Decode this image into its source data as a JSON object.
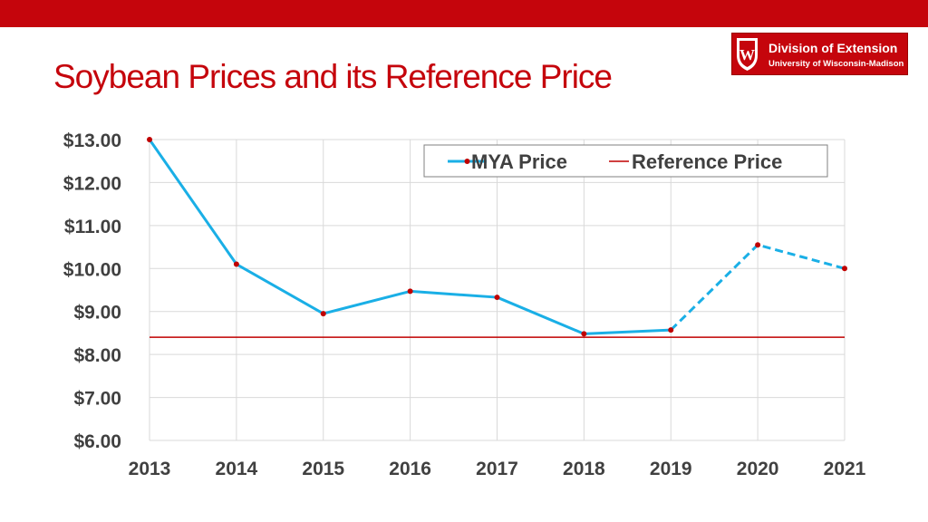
{
  "slide": {
    "title": "Soybean Prices and its Reference Price"
  },
  "logo": {
    "line1": "Division of Extension",
    "line2": "University of Wisconsin-Madison",
    "crest_letter": "W"
  },
  "colors": {
    "brand_red": "#c5050c",
    "mya_line": "#1aafe6",
    "marker": "#c00000",
    "reference_line": "#c00000"
  },
  "chart_data": {
    "type": "line",
    "title": "",
    "xlabel": "",
    "ylabel": "",
    "categories": [
      "2013",
      "2014",
      "2015",
      "2016",
      "2017",
      "2018",
      "2019",
      "2020",
      "2021"
    ],
    "ylim": [
      6,
      13
    ],
    "y_tick_labels": [
      "$6.00",
      "$7.00",
      "$8.00",
      "$9.00",
      "$10.00",
      "$11.00",
      "$12.00",
      "$13.00"
    ],
    "grid": true,
    "legend_position": "top-right",
    "series": [
      {
        "name": "MYA Price",
        "values": [
          13.0,
          10.1,
          8.95,
          9.47,
          9.33,
          8.48,
          8.57,
          10.55,
          10.0
        ],
        "markers": true,
        "dashed_from_index": 6
      },
      {
        "name": "Reference Price",
        "values": [
          8.4,
          8.4,
          8.4,
          8.4,
          8.4,
          8.4,
          8.4,
          8.4,
          8.4
        ],
        "markers": false
      }
    ]
  }
}
